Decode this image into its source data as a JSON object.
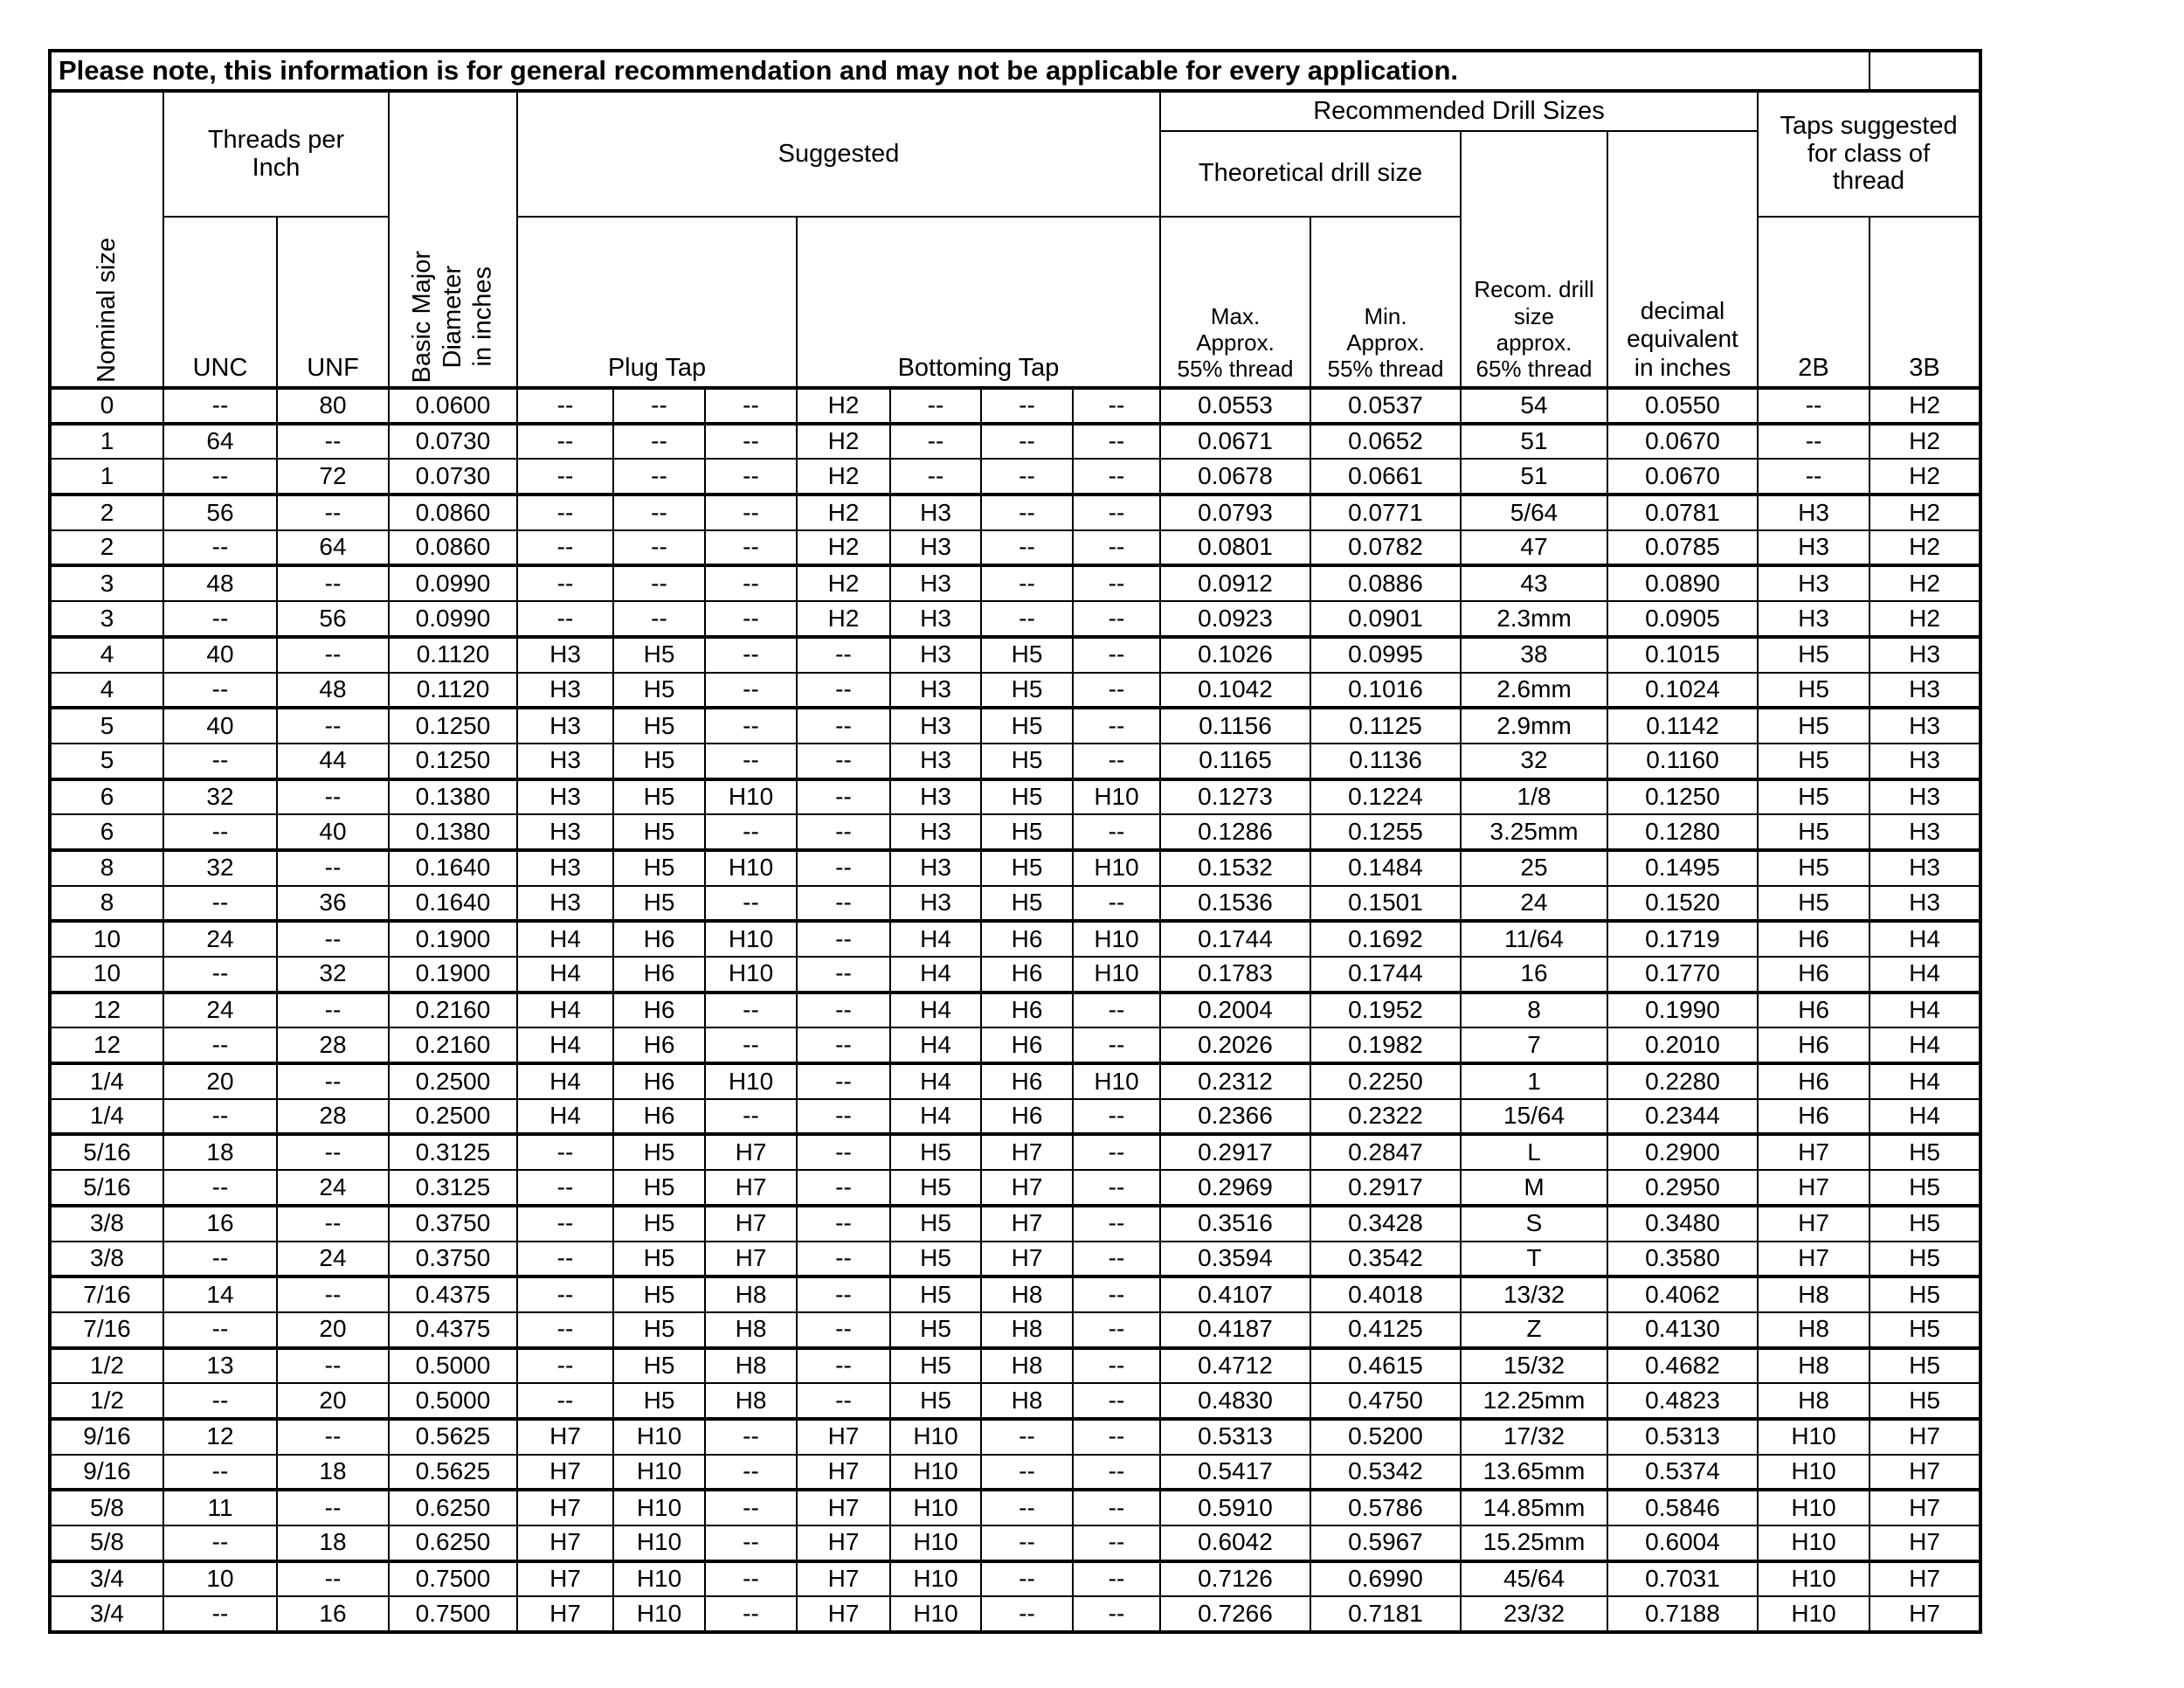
{
  "note": "Please note, this information is for general recommendation and may not be applicable for every application.",
  "header": {
    "nominal_size": "Nominal size",
    "threads_per_inch": "Threads per\nInch",
    "unc": "UNC",
    "unf": "UNF",
    "basic_major": "Basic Major\nDiameter\nin inches",
    "suggested": "Suggested",
    "plug_tap": "Plug Tap",
    "bottoming_tap": "Bottoming Tap",
    "recommended_drill_sizes": "Recommended Drill Sizes",
    "theoretical_drill_size": "Theoretical drill size",
    "max_approx": "Max.\nApprox.\n55% thread",
    "min_approx": "Min.\nApprox.\n55% thread",
    "recom_drill_size": "Recom. drill\nsize\napprox.\n65% thread",
    "decimal_equivalent": "decimal\nequivalent\nin inches",
    "taps_suggested": "Taps suggested\nfor class of\nthread",
    "class_2b": "2B",
    "class_3b": "3B"
  },
  "table": {
    "columns": [
      "nominal-size",
      "unc",
      "unf",
      "basic-major-diameter",
      "plug-tap-1",
      "plug-tap-2",
      "plug-tap-3",
      "bottoming-tap-1",
      "bottoming-tap-2",
      "bottoming-tap-3",
      "bottoming-tap-4",
      "max-approx-55",
      "min-approx-55",
      "recom-drill-65",
      "decimal-equivalent",
      "class-2b",
      "class-3b"
    ],
    "rows": [
      [
        "0",
        "--",
        "80",
        "0.0600",
        "--",
        "--",
        "--",
        "H2",
        "--",
        "--",
        "--",
        "0.0553",
        "0.0537",
        "54",
        "0.0550",
        "--",
        "H2"
      ],
      [
        "1",
        "64",
        "--",
        "0.0730",
        "--",
        "--",
        "--",
        "H2",
        "--",
        "--",
        "--",
        "0.0671",
        "0.0652",
        "51",
        "0.0670",
        "--",
        "H2"
      ],
      [
        "1",
        "--",
        "72",
        "0.0730",
        "--",
        "--",
        "--",
        "H2",
        "--",
        "--",
        "--",
        "0.0678",
        "0.0661",
        "51",
        "0.0670",
        "--",
        "H2"
      ],
      [
        "2",
        "56",
        "--",
        "0.0860",
        "--",
        "--",
        "--",
        "H2",
        "H3",
        "--",
        "--",
        "0.0793",
        "0.0771",
        "5/64",
        "0.0781",
        "H3",
        "H2"
      ],
      [
        "2",
        "--",
        "64",
        "0.0860",
        "--",
        "--",
        "--",
        "H2",
        "H3",
        "--",
        "--",
        "0.0801",
        "0.0782",
        "47",
        "0.0785",
        "H3",
        "H2"
      ],
      [
        "3",
        "48",
        "--",
        "0.0990",
        "--",
        "--",
        "--",
        "H2",
        "H3",
        "--",
        "--",
        "0.0912",
        "0.0886",
        "43",
        "0.0890",
        "H3",
        "H2"
      ],
      [
        "3",
        "--",
        "56",
        "0.0990",
        "--",
        "--",
        "--",
        "H2",
        "H3",
        "--",
        "--",
        "0.0923",
        "0.0901",
        "2.3mm",
        "0.0905",
        "H3",
        "H2"
      ],
      [
        "4",
        "40",
        "--",
        "0.1120",
        "H3",
        "H5",
        "--",
        "--",
        "H3",
        "H5",
        "--",
        "0.1026",
        "0.0995",
        "38",
        "0.1015",
        "H5",
        "H3"
      ],
      [
        "4",
        "--",
        "48",
        "0.1120",
        "H3",
        "H5",
        "--",
        "--",
        "H3",
        "H5",
        "--",
        "0.1042",
        "0.1016",
        "2.6mm",
        "0.1024",
        "H5",
        "H3"
      ],
      [
        "5",
        "40",
        "--",
        "0.1250",
        "H3",
        "H5",
        "--",
        "--",
        "H3",
        "H5",
        "--",
        "0.1156",
        "0.1125",
        "2.9mm",
        "0.1142",
        "H5",
        "H3"
      ],
      [
        "5",
        "--",
        "44",
        "0.1250",
        "H3",
        "H5",
        "--",
        "--",
        "H3",
        "H5",
        "--",
        "0.1165",
        "0.1136",
        "32",
        "0.1160",
        "H5",
        "H3"
      ],
      [
        "6",
        "32",
        "--",
        "0.1380",
        "H3",
        "H5",
        "H10",
        "--",
        "H3",
        "H5",
        "H10",
        "0.1273",
        "0.1224",
        "1/8",
        "0.1250",
        "H5",
        "H3"
      ],
      [
        "6",
        "--",
        "40",
        "0.1380",
        "H3",
        "H5",
        "--",
        "--",
        "H3",
        "H5",
        "--",
        "0.1286",
        "0.1255",
        "3.25mm",
        "0.1280",
        "H5",
        "H3"
      ],
      [
        "8",
        "32",
        "--",
        "0.1640",
        "H3",
        "H5",
        "H10",
        "--",
        "H3",
        "H5",
        "H10",
        "0.1532",
        "0.1484",
        "25",
        "0.1495",
        "H5",
        "H3"
      ],
      [
        "8",
        "--",
        "36",
        "0.1640",
        "H3",
        "H5",
        "--",
        "--",
        "H3",
        "H5",
        "--",
        "0.1536",
        "0.1501",
        "24",
        "0.1520",
        "H5",
        "H3"
      ],
      [
        "10",
        "24",
        "--",
        "0.1900",
        "H4",
        "H6",
        "H10",
        "--",
        "H4",
        "H6",
        "H10",
        "0.1744",
        "0.1692",
        "11/64",
        "0.1719",
        "H6",
        "H4"
      ],
      [
        "10",
        "--",
        "32",
        "0.1900",
        "H4",
        "H6",
        "H10",
        "--",
        "H4",
        "H6",
        "H10",
        "0.1783",
        "0.1744",
        "16",
        "0.1770",
        "H6",
        "H4"
      ],
      [
        "12",
        "24",
        "--",
        "0.2160",
        "H4",
        "H6",
        "--",
        "--",
        "H4",
        "H6",
        "--",
        "0.2004",
        "0.1952",
        "8",
        "0.1990",
        "H6",
        "H4"
      ],
      [
        "12",
        "--",
        "28",
        "0.2160",
        "H4",
        "H6",
        "--",
        "--",
        "H4",
        "H6",
        "--",
        "0.2026",
        "0.1982",
        "7",
        "0.2010",
        "H6",
        "H4"
      ],
      [
        "1/4",
        "20",
        "--",
        "0.2500",
        "H4",
        "H6",
        "H10",
        "--",
        "H4",
        "H6",
        "H10",
        "0.2312",
        "0.2250",
        "1",
        "0.2280",
        "H6",
        "H4"
      ],
      [
        "1/4",
        "--",
        "28",
        "0.2500",
        "H4",
        "H6",
        "--",
        "--",
        "H4",
        "H6",
        "--",
        "0.2366",
        "0.2322",
        "15/64",
        "0.2344",
        "H6",
        "H4"
      ],
      [
        "5/16",
        "18",
        "--",
        "0.3125",
        "--",
        "H5",
        "H7",
        "--",
        "H5",
        "H7",
        "--",
        "0.2917",
        "0.2847",
        "L",
        "0.2900",
        "H7",
        "H5"
      ],
      [
        "5/16",
        "--",
        "24",
        "0.3125",
        "--",
        "H5",
        "H7",
        "--",
        "H5",
        "H7",
        "--",
        "0.2969",
        "0.2917",
        "M",
        "0.2950",
        "H7",
        "H5"
      ],
      [
        "3/8",
        "16",
        "--",
        "0.3750",
        "--",
        "H5",
        "H7",
        "--",
        "H5",
        "H7",
        "--",
        "0.3516",
        "0.3428",
        "S",
        "0.3480",
        "H7",
        "H5"
      ],
      [
        "3/8",
        "--",
        "24",
        "0.3750",
        "--",
        "H5",
        "H7",
        "--",
        "H5",
        "H7",
        "--",
        "0.3594",
        "0.3542",
        "T",
        "0.3580",
        "H7",
        "H5"
      ],
      [
        "7/16",
        "14",
        "--",
        "0.4375",
        "--",
        "H5",
        "H8",
        "--",
        "H5",
        "H8",
        "--",
        "0.4107",
        "0.4018",
        "13/32",
        "0.4062",
        "H8",
        "H5"
      ],
      [
        "7/16",
        "--",
        "20",
        "0.4375",
        "--",
        "H5",
        "H8",
        "--",
        "H5",
        "H8",
        "--",
        "0.4187",
        "0.4125",
        "Z",
        "0.4130",
        "H8",
        "H5"
      ],
      [
        "1/2",
        "13",
        "--",
        "0.5000",
        "--",
        "H5",
        "H8",
        "--",
        "H5",
        "H8",
        "--",
        "0.4712",
        "0.4615",
        "15/32",
        "0.4682",
        "H8",
        "H5"
      ],
      [
        "1/2",
        "--",
        "20",
        "0.5000",
        "--",
        "H5",
        "H8",
        "--",
        "H5",
        "H8",
        "--",
        "0.4830",
        "0.4750",
        "12.25mm",
        "0.4823",
        "H8",
        "H5"
      ],
      [
        "9/16",
        "12",
        "--",
        "0.5625",
        "H7",
        "H10",
        "--",
        "H7",
        "H10",
        "--",
        "--",
        "0.5313",
        "0.5200",
        "17/32",
        "0.5313",
        "H10",
        "H7"
      ],
      [
        "9/16",
        "--",
        "18",
        "0.5625",
        "H7",
        "H10",
        "--",
        "H7",
        "H10",
        "--",
        "--",
        "0.5417",
        "0.5342",
        "13.65mm",
        "0.5374",
        "H10",
        "H7"
      ],
      [
        "5/8",
        "11",
        "--",
        "0.6250",
        "H7",
        "H10",
        "--",
        "H7",
        "H10",
        "--",
        "--",
        "0.5910",
        "0.5786",
        "14.85mm",
        "0.5846",
        "H10",
        "H7"
      ],
      [
        "5/8",
        "--",
        "18",
        "0.6250",
        "H7",
        "H10",
        "--",
        "H7",
        "H10",
        "--",
        "--",
        "0.6042",
        "0.5967",
        "15.25mm",
        "0.6004",
        "H10",
        "H7"
      ],
      [
        "3/4",
        "10",
        "--",
        "0.7500",
        "H7",
        "H10",
        "--",
        "H7",
        "H10",
        "--",
        "--",
        "0.7126",
        "0.6990",
        "45/64",
        "0.7031",
        "H10",
        "H7"
      ],
      [
        "3/4",
        "--",
        "16",
        "0.7500",
        "H7",
        "H10",
        "--",
        "H7",
        "H10",
        "--",
        "--",
        "0.7266",
        "0.7181",
        "23/32",
        "0.7188",
        "H10",
        "H7"
      ]
    ]
  },
  "colors": {
    "border": "#000000",
    "text": "#000000",
    "background": "#ffffff"
  }
}
